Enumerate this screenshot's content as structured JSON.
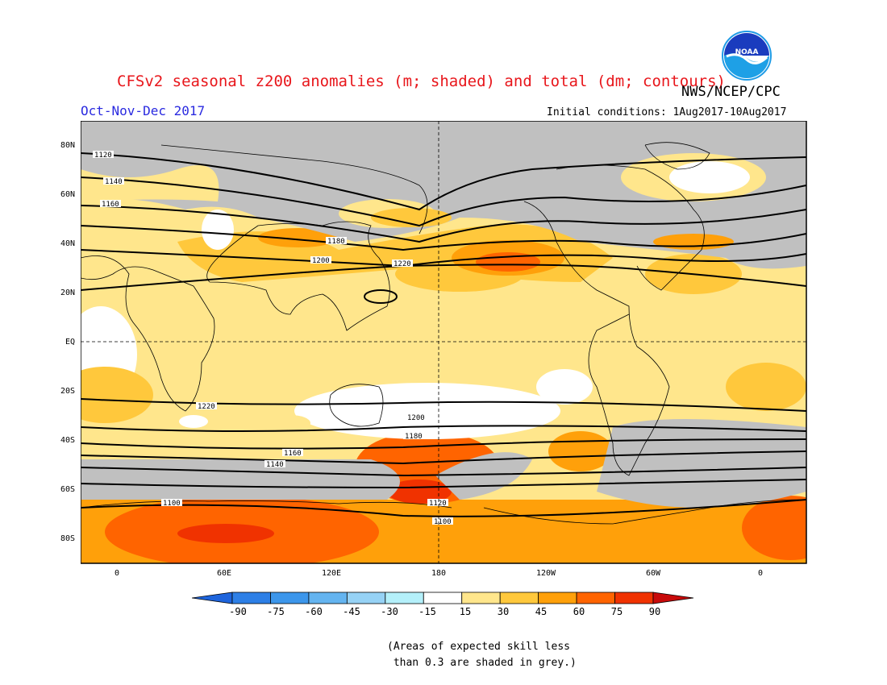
{
  "title": "CFSv2 seasonal z200 anomalies (m; shaded) and total (dm; contours)",
  "agency": "NWS/NCEP/CPC",
  "season": "Oct-Nov-Dec 2017",
  "initial_conditions": "Initial conditions: 1Aug2017-10Aug2017",
  "logo_text": "NOAA",
  "lat_labels": [
    "80N",
    "60N",
    "40N",
    "20N",
    "EQ",
    "20S",
    "40S",
    "60S",
    "80S"
  ],
  "lon_labels": [
    "0",
    "60E",
    "120E",
    "180",
    "120W",
    "60W",
    "0"
  ],
  "colorbar": {
    "labels": [
      "-90",
      "-75",
      "-60",
      "-45",
      "-30",
      "-15",
      "15",
      "30",
      "45",
      "60",
      "75",
      "90"
    ],
    "colors": [
      "#1e64dc",
      "#2d7fe6",
      "#3c96eb",
      "#64b4f0",
      "#96d2f5",
      "#b4f0fa",
      "#ffffff",
      "#ffe68c",
      "#ffc83c",
      "#ffa00a",
      "#ff6400",
      "#f03200",
      "#c80a0a"
    ]
  },
  "contour_labels": [
    "1120",
    "1140",
    "1160",
    "1180",
    "1200",
    "1220",
    "1220",
    "1200",
    "1180",
    "1160",
    "1140",
    "1100",
    "1100",
    "1120"
  ],
  "note": "(Areas of expected skill less\n than 0.3 are shaded in grey.)",
  "colors": {
    "title": "#e8161b",
    "season": "#2a2ae0",
    "skill_grey": "#c0c0c0"
  }
}
